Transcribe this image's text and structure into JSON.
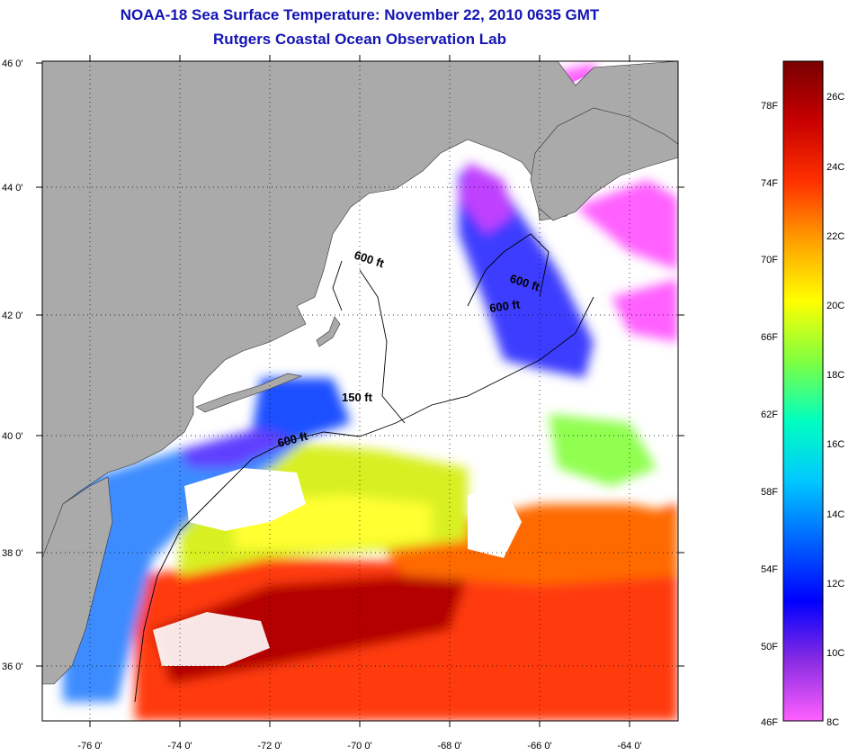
{
  "header": {
    "title": "NOAA-18 Sea Surface Temperature:  November 22, 2010 0635 GMT",
    "subtitle": "Rutgers Coastal Ocean Observation Lab"
  },
  "map": {
    "lon_range": [
      -77,
      -63
    ],
    "lat_range": [
      35,
      46
    ],
    "lon_ticks": [
      "-76 0'",
      "-74 0'",
      "-72 0'",
      "-70 0'",
      "-68 0'",
      "-66 0'",
      "-64 0'"
    ],
    "lat_ticks": [
      "46 0'",
      "44 0'",
      "42 0'",
      "40 0'",
      "38 0'",
      "36 0'"
    ],
    "contour_labels": [
      "600 ft",
      "600 ft",
      "600 ft",
      "150 ft",
      "600 ft"
    ]
  },
  "colorbar": {
    "f_labels": [
      "78F",
      "74F",
      "70F",
      "66F",
      "62F",
      "58F",
      "54F",
      "50F",
      "46F"
    ],
    "c_labels": [
      "26C",
      "24C",
      "22C",
      "20C",
      "18C",
      "16C",
      "14C",
      "12C",
      "10C",
      "8C"
    ],
    "colors": [
      "#ff60ff",
      "#8a2be2",
      "#0000ff",
      "#0064ff",
      "#00c8ff",
      "#00ffc0",
      "#80ff40",
      "#ffff00",
      "#ffa000",
      "#ff3000",
      "#c80000",
      "#780000"
    ]
  },
  "colors": {
    "land": "#aaaaaa",
    "no_data": "#ffffff",
    "title": "#1414b4"
  }
}
